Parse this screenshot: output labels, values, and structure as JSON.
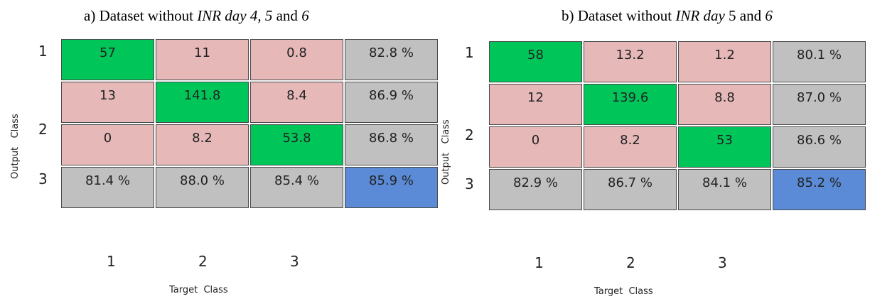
{
  "colors": {
    "correct": "#00c659",
    "incorrect": "#e6b8b8",
    "summary": "#c0c0c0",
    "overall": "#5b8bd6"
  },
  "chart_data": [
    {
      "type": "table",
      "title_parts": [
        "a) Dataset without ",
        "INR day 4, 5",
        " and ",
        "6"
      ],
      "xlabel": "Target  Class",
      "ylabel": "Output   Class",
      "row_ticks": [
        "1",
        "2",
        "3"
      ],
      "col_ticks": [
        "1",
        "2",
        "3"
      ],
      "matrix": [
        [
          "57",
          "11",
          "0.8",
          "82.8 %"
        ],
        [
          "13",
          "141.8",
          "8.4",
          "86.9 %"
        ],
        [
          "0",
          "8.2",
          "53.8",
          "86.8 %"
        ],
        [
          "81.4 %",
          "88.0 %",
          "85.4 %",
          "85.9 %"
        ]
      ]
    },
    {
      "type": "table",
      "title_parts": [
        "b) Dataset without ",
        "INR day",
        " 5 and ",
        "6"
      ],
      "xlabel": "Target  Class",
      "ylabel": "Output   Class",
      "row_ticks": [
        "1",
        "2",
        "3"
      ],
      "col_ticks": [
        "1",
        "2",
        "3"
      ],
      "matrix": [
        [
          "58",
          "13.2",
          "1.2",
          "80.1 %"
        ],
        [
          "12",
          "139.6",
          "8.8",
          "87.0 %"
        ],
        [
          "0",
          "8.2",
          "53",
          "86.6 %"
        ],
        [
          "82.9 %",
          "86.7 %",
          "84.1 %",
          "85.2 %"
        ]
      ]
    }
  ]
}
